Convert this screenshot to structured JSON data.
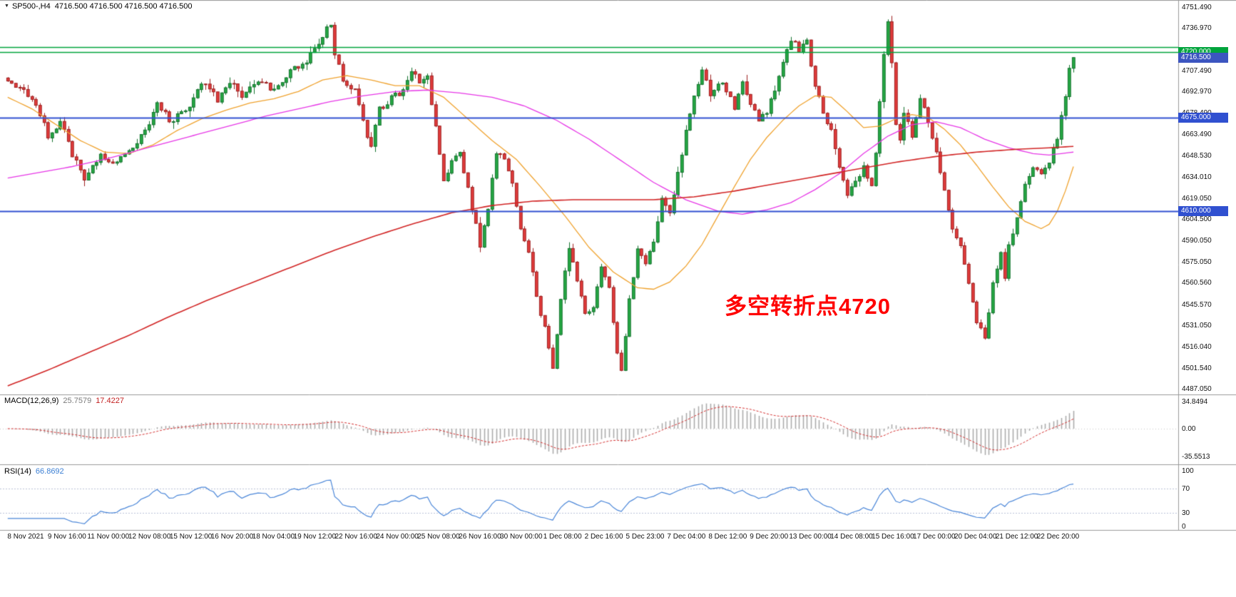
{
  "chart_data": {
    "type": "candlestick",
    "title_symbol": "SP500-,H4",
    "title_quotes": "4716.500 4716.500 4716.500 4716.500",
    "bars_total": 265,
    "price_axis": {
      "min": 4483.1,
      "max": 4756.4,
      "ticks": [
        "4751.490",
        "4736.970",
        "4721.490",
        "4707.490",
        "4692.970",
        "4678.490",
        "4663.490",
        "4648.530",
        "4634.010",
        "4619.050",
        "4604.500",
        "4590.050",
        "4575.050",
        "4560.560",
        "4545.570",
        "4531.050",
        "4516.040",
        "4501.540",
        "4487.050"
      ]
    },
    "price_path": [
      [
        0,
        4701
      ],
      [
        4,
        4694
      ],
      [
        8,
        4678
      ],
      [
        10,
        4662
      ],
      [
        13,
        4672
      ],
      [
        16,
        4650
      ],
      [
        19,
        4630
      ],
      [
        23,
        4650
      ],
      [
        26,
        4641
      ],
      [
        30,
        4652
      ],
      [
        34,
        4665
      ],
      [
        37,
        4686
      ],
      [
        40,
        4672
      ],
      [
        44,
        4679
      ],
      [
        48,
        4700
      ],
      [
        52,
        4688
      ],
      [
        55,
        4700
      ],
      [
        58,
        4690
      ],
      [
        62,
        4700
      ],
      [
        66,
        4695
      ],
      [
        70,
        4706
      ],
      [
        74,
        4714
      ],
      [
        77,
        4726
      ],
      [
        79,
        4738
      ],
      [
        80,
        4741
      ],
      [
        81,
        4718
      ],
      [
        83,
        4701
      ],
      [
        86,
        4695
      ],
      [
        88,
        4672
      ],
      [
        90,
        4655
      ],
      [
        92,
        4680
      ],
      [
        95,
        4689
      ],
      [
        98,
        4694
      ],
      [
        100,
        4708
      ],
      [
        102,
        4699
      ],
      [
        104,
        4702
      ],
      [
        106,
        4668
      ],
      [
        108,
        4632
      ],
      [
        110,
        4645
      ],
      [
        112,
        4650
      ],
      [
        114,
        4625
      ],
      [
        116,
        4600
      ],
      [
        117,
        4587
      ],
      [
        119,
        4612
      ],
      [
        121,
        4650
      ],
      [
        123,
        4645
      ],
      [
        125,
        4628
      ],
      [
        127,
        4600
      ],
      [
        129,
        4580
      ],
      [
        131,
        4552
      ],
      [
        133,
        4528
      ],
      [
        135,
        4500
      ],
      [
        137,
        4548
      ],
      [
        139,
        4585
      ],
      [
        141,
        4560
      ],
      [
        143,
        4540
      ],
      [
        145,
        4545
      ],
      [
        147,
        4572
      ],
      [
        149,
        4557
      ],
      [
        151,
        4512
      ],
      [
        152,
        4500
      ],
      [
        154,
        4548
      ],
      [
        156,
        4585
      ],
      [
        158,
        4575
      ],
      [
        160,
        4590
      ],
      [
        162,
        4618
      ],
      [
        164,
        4610
      ],
      [
        166,
        4635
      ],
      [
        168,
        4665
      ],
      [
        170,
        4690
      ],
      [
        172,
        4706
      ],
      [
        174,
        4692
      ],
      [
        176,
        4700
      ],
      [
        178,
        4695
      ],
      [
        180,
        4680
      ],
      [
        182,
        4698
      ],
      [
        184,
        4685
      ],
      [
        186,
        4672
      ],
      [
        188,
        4680
      ],
      [
        190,
        4692
      ],
      [
        192,
        4715
      ],
      [
        194,
        4728
      ],
      [
        196,
        4722
      ],
      [
        198,
        4730
      ],
      [
        200,
        4695
      ],
      [
        202,
        4680
      ],
      [
        204,
        4665
      ],
      [
        206,
        4640
      ],
      [
        208,
        4622
      ],
      [
        210,
        4630
      ],
      [
        212,
        4642
      ],
      [
        214,
        4628
      ],
      [
        215,
        4650
      ],
      [
        216,
        4688
      ],
      [
        217,
        4720
      ],
      [
        218,
        4740
      ],
      [
        219,
        4712
      ],
      [
        220,
        4668
      ],
      [
        221,
        4660
      ],
      [
        222,
        4678
      ],
      [
        224,
        4662
      ],
      [
        226,
        4690
      ],
      [
        228,
        4670
      ],
      [
        230,
        4650
      ],
      [
        232,
        4625
      ],
      [
        234,
        4600
      ],
      [
        236,
        4585
      ],
      [
        238,
        4560
      ],
      [
        240,
        4535
      ],
      [
        242,
        4522
      ],
      [
        244,
        4560
      ],
      [
        246,
        4580
      ],
      [
        247,
        4565
      ],
      [
        248,
        4585
      ],
      [
        250,
        4605
      ],
      [
        252,
        4628
      ],
      [
        254,
        4640
      ],
      [
        256,
        4635
      ],
      [
        258,
        4645
      ],
      [
        260,
        4662
      ],
      [
        262,
        4690
      ],
      [
        263,
        4710
      ],
      [
        264,
        4716.5
      ]
    ],
    "candles": {
      "up_fill": "#25a843",
      "up_edge": "#12702c",
      "down_fill": "#e13b3b",
      "down_edge": "#9c1f1f",
      "seed": 20211222,
      "close_jitter": 2.4,
      "wick_jitter": 4.2
    },
    "ma_lines": [
      {
        "name": "ma-orange",
        "color": "#efa22e",
        "width": 1.3,
        "path": [
          [
            0,
            4689
          ],
          [
            6,
            4681
          ],
          [
            12,
            4670
          ],
          [
            18,
            4659
          ],
          [
            24,
            4651
          ],
          [
            30,
            4650
          ],
          [
            36,
            4656
          ],
          [
            42,
            4666
          ],
          [
            48,
            4674
          ],
          [
            54,
            4680
          ],
          [
            60,
            4685
          ],
          [
            66,
            4688
          ],
          [
            72,
            4693
          ],
          [
            78,
            4701
          ],
          [
            84,
            4704
          ],
          [
            90,
            4701
          ],
          [
            96,
            4697
          ],
          [
            102,
            4697
          ],
          [
            108,
            4689
          ],
          [
            114,
            4674
          ],
          [
            120,
            4659
          ],
          [
            126,
            4646
          ],
          [
            132,
            4627
          ],
          [
            138,
            4607
          ],
          [
            144,
            4585
          ],
          [
            150,
            4568
          ],
          [
            156,
            4557
          ],
          [
            160,
            4556
          ],
          [
            164,
            4561
          ],
          [
            168,
            4572
          ],
          [
            172,
            4587
          ],
          [
            176,
            4607
          ],
          [
            180,
            4627
          ],
          [
            184,
            4646
          ],
          [
            188,
            4661
          ],
          [
            192,
            4673
          ],
          [
            196,
            4683
          ],
          [
            200,
            4690
          ],
          [
            204,
            4689
          ],
          [
            208,
            4679
          ],
          [
            212,
            4668
          ],
          [
            216,
            4669
          ],
          [
            220,
            4674
          ],
          [
            224,
            4677
          ],
          [
            228,
            4675
          ],
          [
            232,
            4667
          ],
          [
            236,
            4656
          ],
          [
            240,
            4642
          ],
          [
            244,
            4627
          ],
          [
            248,
            4613
          ],
          [
            252,
            4603
          ],
          [
            256,
            4598
          ],
          [
            258,
            4601
          ],
          [
            260,
            4610
          ],
          [
            262,
            4624
          ],
          [
            264,
            4641
          ]
        ]
      },
      {
        "name": "ma-magenta",
        "color": "#e637e6",
        "width": 1.3,
        "path": [
          [
            0,
            4633
          ],
          [
            8,
            4637
          ],
          [
            16,
            4641
          ],
          [
            24,
            4646
          ],
          [
            32,
            4652
          ],
          [
            40,
            4658
          ],
          [
            48,
            4664
          ],
          [
            56,
            4670
          ],
          [
            64,
            4676
          ],
          [
            72,
            4681
          ],
          [
            80,
            4686
          ],
          [
            88,
            4690
          ],
          [
            96,
            4693
          ],
          [
            104,
            4694
          ],
          [
            112,
            4692
          ],
          [
            120,
            4689
          ],
          [
            128,
            4683
          ],
          [
            136,
            4673
          ],
          [
            144,
            4660
          ],
          [
            152,
            4645
          ],
          [
            160,
            4630
          ],
          [
            168,
            4618
          ],
          [
            176,
            4610
          ],
          [
            182,
            4608
          ],
          [
            188,
            4611
          ],
          [
            194,
            4616
          ],
          [
            200,
            4625
          ],
          [
            206,
            4636
          ],
          [
            212,
            4650
          ],
          [
            218,
            4662
          ],
          [
            224,
            4670
          ],
          [
            230,
            4672
          ],
          [
            236,
            4668
          ],
          [
            242,
            4660
          ],
          [
            248,
            4654
          ],
          [
            254,
            4650
          ],
          [
            258,
            4649
          ],
          [
            264,
            4651
          ]
        ]
      },
      {
        "name": "ma-red-slow",
        "color": "#d12424",
        "width": 1.6,
        "path": [
          [
            0,
            4489
          ],
          [
            10,
            4500
          ],
          [
            20,
            4512
          ],
          [
            30,
            4524
          ],
          [
            40,
            4537
          ],
          [
            50,
            4549
          ],
          [
            60,
            4560
          ],
          [
            70,
            4571
          ],
          [
            80,
            4582
          ],
          [
            90,
            4592
          ],
          [
            100,
            4601
          ],
          [
            110,
            4609
          ],
          [
            120,
            4614
          ],
          [
            130,
            4617
          ],
          [
            140,
            4618
          ],
          [
            150,
            4618
          ],
          [
            160,
            4618
          ],
          [
            170,
            4620
          ],
          [
            180,
            4624
          ],
          [
            190,
            4629
          ],
          [
            200,
            4634
          ],
          [
            210,
            4639
          ],
          [
            220,
            4644
          ],
          [
            230,
            4648
          ],
          [
            240,
            4651
          ],
          [
            250,
            4653
          ],
          [
            258,
            4654
          ],
          [
            264,
            4655
          ]
        ]
      }
    ],
    "hlines": [
      {
        "price": 4723.8,
        "color": "#00a43c",
        "width": 1.4,
        "label": null,
        "badge": null
      },
      {
        "price": 4720.2,
        "color": "#00a43c",
        "width": 1.4,
        "label": "4720.000",
        "badge": "#00a43c"
      },
      {
        "price": 4675.0,
        "color": "#3050d0",
        "width": 2,
        "label": "4675.000",
        "badge": "#3050d0"
      },
      {
        "price": 4610.0,
        "color": "#3050d0",
        "width": 2,
        "label": "4610.000",
        "badge": "#3050d0"
      }
    ],
    "current_price": {
      "value": "4716.500",
      "price": 4716.5,
      "badge": "#3c55c0"
    },
    "annotation": {
      "text": "多空转折点4720",
      "color": "#ff0000"
    },
    "time_axis": [
      "8 Nov 2021",
      "9 Nov 16:00",
      "11 Nov 00:00",
      "12 Nov 08:00",
      "15 Nov 12:00",
      "16 Nov 20:00",
      "18 Nov 04:00",
      "19 Nov 12:00",
      "22 Nov 16:00",
      "24 Nov 00:00",
      "25 Nov 08:00",
      "26 Nov 16:00",
      "30 Nov 00:00",
      "1 Dec 08:00",
      "2 Dec 16:00",
      "5 Dec 23:00",
      "7 Dec 04:00",
      "8 Dec 12:00",
      "9 Dec 20:00",
      "13 Dec 00:00",
      "14 Dec 08:00",
      "15 Dec 16:00",
      "17 Dec 00:00",
      "20 Dec 04:00",
      "21 Dec 12:00",
      "22 Dec 20:00"
    ],
    "macd": {
      "label": "MACD(12,26,9)",
      "value_main": "25.7579",
      "value_signal": "17.4227",
      "fast": 12,
      "slow": 26,
      "signal": 9,
      "axis": [
        "34.8494",
        "0.00",
        "-35.5513"
      ],
      "axis_values": [
        34.8494,
        0,
        -35.5513
      ],
      "hist_color": "#ababab",
      "signal_color": "#d32f2f"
    },
    "rsi": {
      "label": "RSI(14)",
      "value": "66.8692",
      "period": 14,
      "axis": [
        "100",
        "70",
        "30",
        "0"
      ],
      "axis_values": [
        100,
        70,
        30,
        0
      ],
      "levels": [
        70,
        30
      ],
      "line_color": "#4a86d8",
      "level_color": "#b9c0d6"
    }
  }
}
